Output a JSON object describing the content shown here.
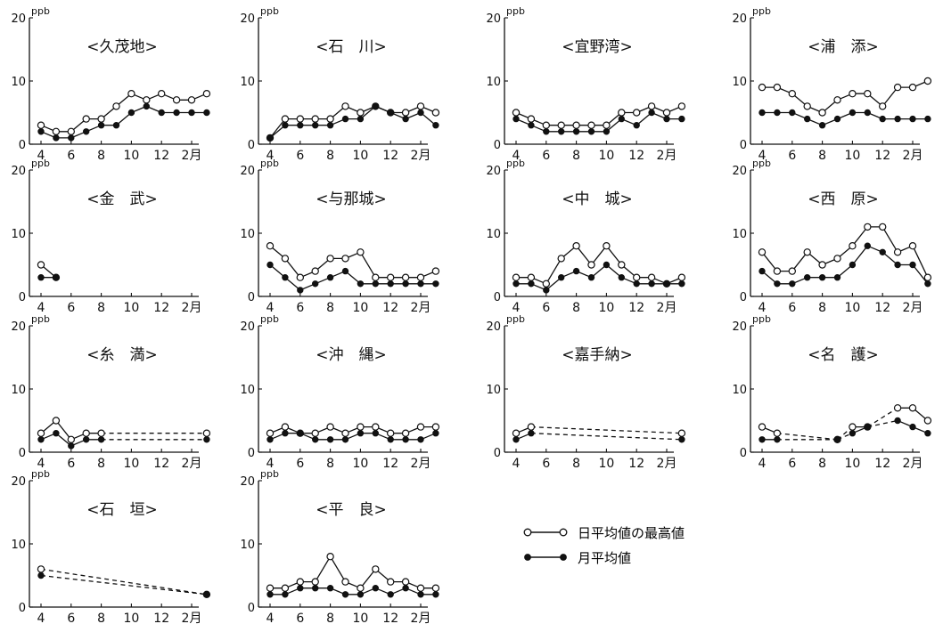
{
  "common": {
    "unit": "ppb",
    "x_ticks": [
      "4",
      "6",
      "8",
      "10",
      "12",
      "2月"
    ],
    "y_ticks": [
      "0",
      "10",
      "20"
    ],
    "months": [
      "4",
      "5",
      "6",
      "7",
      "8",
      "9",
      "10",
      "11",
      "12",
      "1",
      "2",
      "3"
    ]
  },
  "legend": [
    {
      "label": "日平均値の最高値",
      "marker": "open"
    },
    {
      "label": "月平均値",
      "marker": "filled"
    }
  ],
  "colors": {
    "line": "#111111",
    "background": "#ffffff"
  },
  "chart_data": [
    {
      "type": "line",
      "title": "<久茂地>",
      "xlabel": "",
      "ylabel": "ppb",
      "ylim": [
        0,
        20
      ],
      "series": [
        {
          "name": "日平均値の最高値",
          "values": [
            3,
            2,
            2,
            4,
            4,
            6,
            8,
            7,
            8,
            7,
            7,
            8
          ],
          "dashed": []
        },
        {
          "name": "月平均値",
          "values": [
            2,
            1,
            1,
            2,
            3,
            3,
            5,
            6,
            5,
            5,
            5,
            5
          ],
          "dashed": []
        }
      ]
    },
    {
      "type": "line",
      "title": "<石　川>",
      "xlabel": "",
      "ylabel": "ppb",
      "ylim": [
        0,
        20
      ],
      "series": [
        {
          "name": "日平均値の最高値",
          "values": [
            1,
            4,
            4,
            4,
            4,
            6,
            5,
            6,
            5,
            5,
            6,
            5
          ],
          "dashed": []
        },
        {
          "name": "月平均値",
          "values": [
            1,
            3,
            3,
            3,
            3,
            4,
            4,
            6,
            5,
            4,
            5,
            3
          ],
          "dashed": []
        }
      ]
    },
    {
      "type": "line",
      "title": "<宜野湾>",
      "xlabel": "",
      "ylabel": "ppb",
      "ylim": [
        0,
        20
      ],
      "series": [
        {
          "name": "日平均値の最高値",
          "values": [
            5,
            4,
            3,
            3,
            3,
            3,
            3,
            5,
            5,
            6,
            5,
            6
          ],
          "dashed": []
        },
        {
          "name": "月平均値",
          "values": [
            4,
            3,
            2,
            2,
            2,
            2,
            2,
            4,
            3,
            5,
            4,
            4
          ],
          "dashed": []
        }
      ]
    },
    {
      "type": "line",
      "title": "<浦　添>",
      "xlabel": "",
      "ylabel": "ppb",
      "ylim": [
        0,
        20
      ],
      "series": [
        {
          "name": "日平均値の最高値",
          "values": [
            9,
            9,
            8,
            6,
            5,
            7,
            8,
            8,
            6,
            9,
            9,
            10
          ],
          "dashed": []
        },
        {
          "name": "月平均値",
          "values": [
            5,
            5,
            5,
            4,
            3,
            4,
            5,
            5,
            4,
            4,
            4,
            4
          ],
          "dashed": []
        }
      ]
    },
    {
      "type": "line",
      "title": "<金　武>",
      "xlabel": "",
      "ylabel": "ppb",
      "ylim": [
        0,
        20
      ],
      "series": [
        {
          "name": "日平均値の最高値",
          "values": [
            5,
            3,
            null,
            null,
            null,
            null,
            null,
            null,
            null,
            null,
            null,
            null
          ],
          "dashed": []
        },
        {
          "name": "月平均値",
          "values": [
            3,
            3,
            null,
            null,
            null,
            null,
            null,
            null,
            null,
            null,
            null,
            null
          ],
          "dashed": []
        }
      ]
    },
    {
      "type": "line",
      "title": "<与那城>",
      "xlabel": "",
      "ylabel": "ppb",
      "ylim": [
        0,
        20
      ],
      "series": [
        {
          "name": "日平均値の最高値",
          "values": [
            8,
            6,
            3,
            4,
            6,
            6,
            7,
            3,
            3,
            3,
            3,
            4
          ],
          "dashed": []
        },
        {
          "name": "月平均値",
          "values": [
            5,
            3,
            1,
            2,
            3,
            4,
            2,
            2,
            2,
            2,
            2,
            2
          ],
          "dashed": []
        }
      ]
    },
    {
      "type": "line",
      "title": "<中　城>",
      "xlabel": "",
      "ylabel": "ppb",
      "ylim": [
        0,
        20
      ],
      "series": [
        {
          "name": "日平均値の最高値",
          "values": [
            3,
            3,
            2,
            6,
            8,
            5,
            8,
            5,
            3,
            3,
            2,
            3
          ],
          "dashed": []
        },
        {
          "name": "月平均値",
          "values": [
            2,
            2,
            1,
            3,
            4,
            3,
            5,
            3,
            2,
            2,
            2,
            2
          ],
          "dashed": []
        }
      ]
    },
    {
      "type": "line",
      "title": "<西　原>",
      "xlabel": "",
      "ylabel": "ppb",
      "ylim": [
        0,
        20
      ],
      "series": [
        {
          "name": "日平均値の最高値",
          "values": [
            7,
            4,
            4,
            7,
            5,
            6,
            8,
            11,
            11,
            7,
            8,
            3
          ],
          "dashed": []
        },
        {
          "name": "月平均値",
          "values": [
            4,
            2,
            2,
            3,
            3,
            3,
            5,
            8,
            7,
            5,
            5,
            2
          ],
          "dashed": []
        }
      ]
    },
    {
      "type": "line",
      "title": "<糸　満>",
      "xlabel": "",
      "ylabel": "ppb",
      "ylim": [
        0,
        20
      ],
      "series": [
        {
          "name": "日平均値の最高値",
          "values": [
            3,
            5,
            2,
            3,
            3,
            null,
            null,
            null,
            null,
            null,
            null,
            3
          ],
          "dashed": [
            4
          ]
        },
        {
          "name": "月平均値",
          "values": [
            2,
            3,
            1,
            2,
            2,
            null,
            null,
            null,
            null,
            null,
            null,
            2
          ],
          "dashed": [
            4
          ]
        }
      ]
    },
    {
      "type": "line",
      "title": "<沖　縄>",
      "xlabel": "",
      "ylabel": "ppb",
      "ylim": [
        0,
        20
      ],
      "series": [
        {
          "name": "日平均値の最高値",
          "values": [
            3,
            4,
            3,
            3,
            4,
            3,
            4,
            4,
            3,
            3,
            4,
            4
          ],
          "dashed": []
        },
        {
          "name": "月平均値",
          "values": [
            2,
            3,
            3,
            2,
            2,
            2,
            3,
            3,
            2,
            2,
            2,
            3
          ],
          "dashed": []
        }
      ]
    },
    {
      "type": "line",
      "title": "<嘉手納>",
      "xlabel": "",
      "ylabel": "ppb",
      "ylim": [
        0,
        20
      ],
      "series": [
        {
          "name": "日平均値の最高値",
          "values": [
            3,
            4,
            null,
            null,
            null,
            null,
            null,
            null,
            null,
            null,
            null,
            3
          ],
          "dashed": [
            1
          ]
        },
        {
          "name": "月平均値",
          "values": [
            2,
            3,
            null,
            null,
            null,
            null,
            null,
            null,
            null,
            null,
            null,
            2
          ],
          "dashed": [
            1
          ]
        }
      ]
    },
    {
      "type": "line",
      "title": "<名　護>",
      "xlabel": "",
      "ylabel": "ppb",
      "ylim": [
        0,
        20
      ],
      "series": [
        {
          "name": "日平均値の最高値",
          "values": [
            4,
            3,
            null,
            null,
            null,
            2,
            4,
            4,
            null,
            7,
            7,
            5
          ],
          "dashed": [
            1,
            5
          ]
        },
        {
          "name": "月平均値",
          "values": [
            2,
            2,
            null,
            null,
            null,
            2,
            3,
            4,
            null,
            5,
            4,
            3
          ],
          "dashed": [
            1,
            5
          ]
        }
      ]
    },
    {
      "type": "line",
      "title": "<石　垣>",
      "xlabel": "",
      "ylabel": "ppb",
      "ylim": [
        0,
        20
      ],
      "series": [
        {
          "name": "日平均値の最高値",
          "values": [
            6,
            null,
            null,
            null,
            null,
            null,
            null,
            null,
            null,
            null,
            null,
            2
          ],
          "dashed": [
            0
          ]
        },
        {
          "name": "月平均値",
          "values": [
            5,
            null,
            null,
            null,
            null,
            null,
            null,
            null,
            null,
            null,
            null,
            2
          ],
          "dashed": [
            0
          ]
        }
      ]
    },
    {
      "type": "line",
      "title": "<平　良>",
      "xlabel": "",
      "ylabel": "ppb",
      "ylim": [
        0,
        20
      ],
      "series": [
        {
          "name": "日平均値の最高値",
          "values": [
            3,
            3,
            4,
            4,
            8,
            4,
            3,
            6,
            4,
            4,
            3,
            3
          ],
          "dashed": []
        },
        {
          "name": "月平均値",
          "values": [
            2,
            2,
            3,
            3,
            3,
            2,
            2,
            3,
            2,
            3,
            2,
            2
          ],
          "dashed": []
        }
      ]
    }
  ]
}
